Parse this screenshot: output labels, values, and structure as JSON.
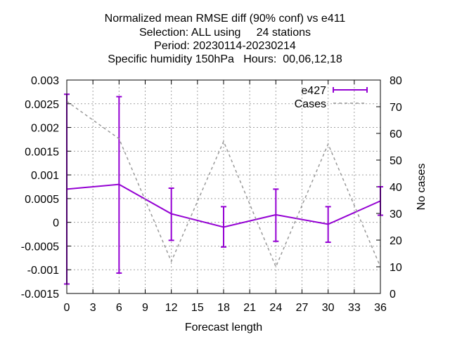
{
  "chart_data": {
    "type": "line",
    "title_lines": [
      "Normalized mean RMSE diff (90% conf) vs e411",
      "Selection: ALL using     24 stations",
      "Period: 20230114-20230214",
      "Specific humidity 150hPa   Hours:  00,06,12,18"
    ],
    "xlabel": "Forecast length",
    "ylabel": "",
    "y2label": "No cases",
    "xlim": [
      0,
      36
    ],
    "ylim": [
      -0.0015,
      0.003
    ],
    "y2lim": [
      0,
      80
    ],
    "x_ticks": [
      "0",
      "3",
      "6",
      "9",
      "12",
      "15",
      "18",
      "21",
      "24",
      "27",
      "30",
      "33",
      "36"
    ],
    "y_ticks": [
      "0.003",
      "0.0025",
      "0.002",
      "0.0015",
      "0.001",
      "0.0005",
      "0",
      "-0.0005",
      "-0.001",
      "-0.0015"
    ],
    "y2_ticks": [
      "80",
      "70",
      "60",
      "50",
      "40",
      "30",
      "20",
      "10",
      "0"
    ],
    "grid": true,
    "legend_position": "top-right",
    "series": [
      {
        "name": "e427",
        "style": "line-with-errorbars",
        "color": "#9400d3",
        "axis": "y",
        "x": [
          0,
          6,
          12,
          18,
          24,
          30,
          36
        ],
        "values": [
          0.0007,
          0.0008,
          0.00018,
          -0.0001,
          0.00016,
          -4e-05,
          0.00045
        ],
        "err_low": [
          -0.0013,
          -0.00107,
          -0.00038,
          -0.00052,
          -0.0004,
          -0.00042,
          0.00015
        ],
        "err_high": [
          0.0027,
          0.00265,
          0.00072,
          0.00033,
          0.0007,
          0.00033,
          0.00075
        ]
      },
      {
        "name": "Cases",
        "style": "dashed",
        "color": "#999999",
        "axis": "y2",
        "x": [
          0,
          6,
          12,
          18,
          24,
          30,
          36
        ],
        "values": [
          72,
          58,
          12,
          57,
          10,
          56,
          10
        ]
      }
    ]
  }
}
